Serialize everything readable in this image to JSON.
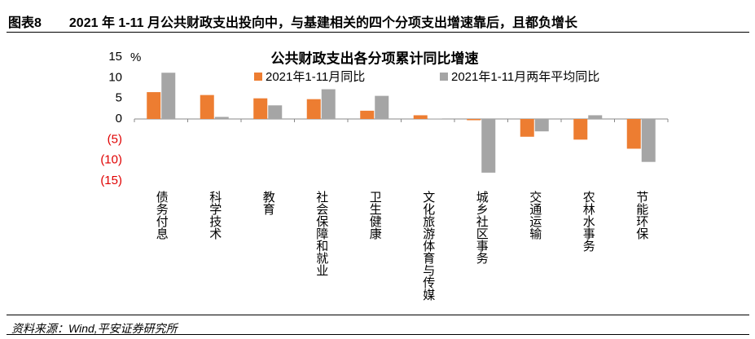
{
  "header": {
    "label": "图表8",
    "title": "2021 年 1-11 月公共财政支出投向中，与基建相关的四个分项支出增速靠后，且都负增长"
  },
  "chart_data": {
    "type": "bar",
    "title": "公共财政支出各分项累计同比增速",
    "y_unit": "%",
    "categories": [
      "债务付息",
      "科学技术",
      "教育",
      "社会保障和就业",
      "卫生健康",
      "文化旅游体育与传媒",
      "城乡社区事务",
      "交通运输",
      "农林水事务",
      "节能环保"
    ],
    "series": [
      {
        "name": "2021年1-11月同比",
        "color": "#ed7d31",
        "values": [
          6.5,
          5.8,
          5.0,
          4.8,
          2.0,
          0.9,
          -0.3,
          -4.3,
          -5.0,
          -7.2
        ]
      },
      {
        "name": "2021年1-11月两年平均同比",
        "color": "#a5a5a5",
        "values": [
          11.2,
          0.5,
          3.3,
          7.2,
          5.6,
          0.1,
          -13.0,
          -3.0,
          0.9,
          -10.4
        ]
      }
    ],
    "ylim": [
      -15,
      15
    ],
    "yticks": [
      15,
      10,
      5,
      0,
      {
        "value": -5,
        "label": "(5)"
      },
      {
        "value": -10,
        "label": "(10)"
      },
      {
        "value": -15,
        "label": "(15)"
      }
    ],
    "negative_tick_color": "#e00000",
    "grid": false
  },
  "source": "资料来源：Wind,平安证券研究所"
}
